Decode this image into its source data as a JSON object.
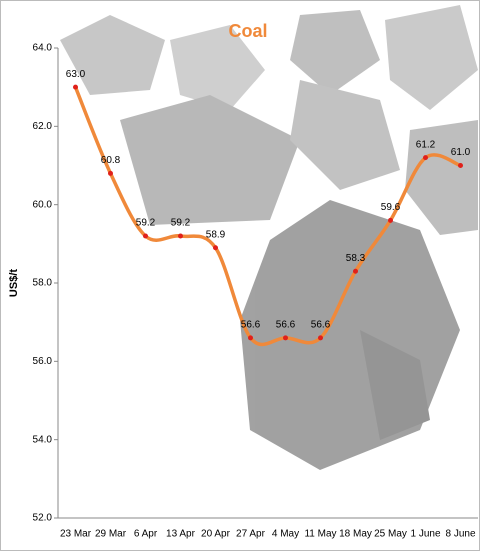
{
  "chart_data": {
    "type": "line",
    "title": "Coal",
    "y_label": "US$/t",
    "categories": [
      "23 Mar",
      "29 Mar",
      "6 Apr",
      "13 Apr",
      "20 Apr",
      "27 Apr",
      "4 May",
      "11 May",
      "18 May",
      "25 May",
      "1 June",
      "8 June"
    ],
    "values": [
      63.0,
      60.8,
      59.2,
      59.2,
      58.9,
      56.6,
      56.6,
      56.6,
      58.3,
      59.6,
      61.2,
      61.0
    ],
    "value_labels": [
      "63.0",
      "60.8",
      "59.2",
      "59.2",
      "58.9",
      "56.6",
      "56.6",
      "56.6",
      "58.3",
      "59.6",
      "61.2",
      "61.0"
    ],
    "color": "#f0893a",
    "marker_color": "#e0201a",
    "ylim": [
      52,
      64
    ],
    "yticks": [
      {
        "value": 52,
        "label": "52.0"
      },
      {
        "value": 54,
        "label": "54.0"
      },
      {
        "value": 56,
        "label": "56.0"
      },
      {
        "value": 58,
        "label": "58.0"
      },
      {
        "value": 60,
        "label": "60.0"
      },
      {
        "value": 62,
        "label": "62.0"
      },
      {
        "value": 64,
        "label": "64.0"
      }
    ],
    "grid": false,
    "smooth": true
  }
}
